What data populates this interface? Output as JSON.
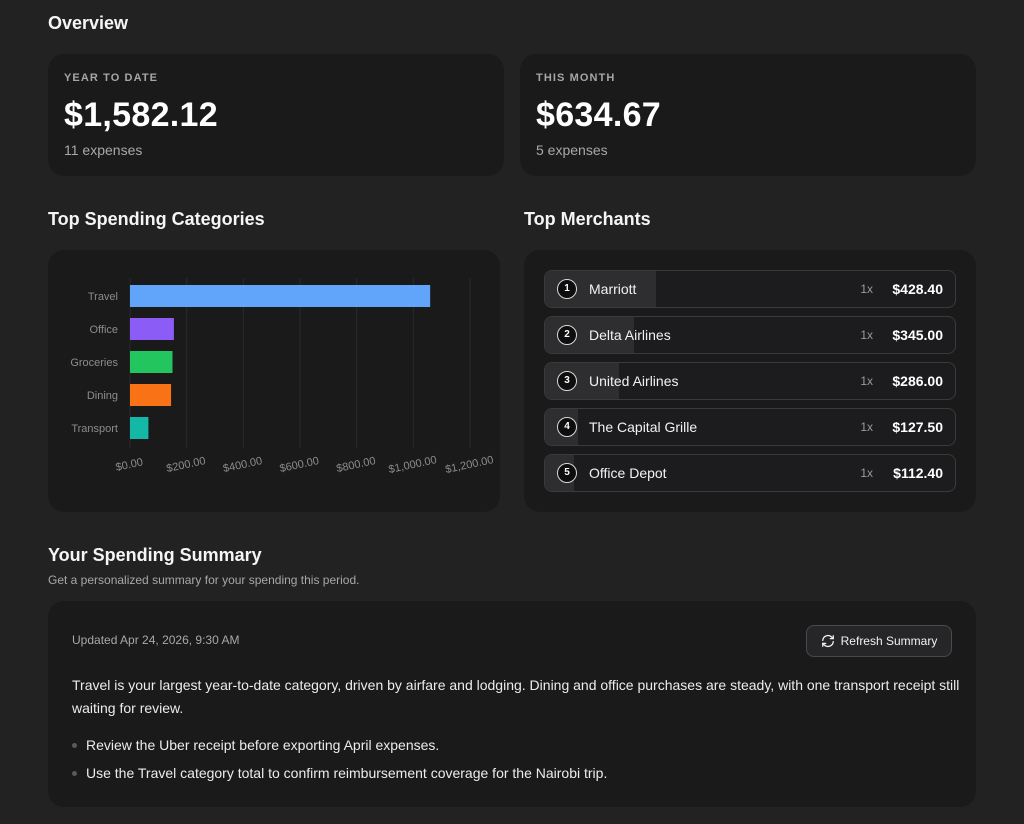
{
  "overview": {
    "title": "Overview",
    "year_to_date": {
      "label": "YEAR TO DATE",
      "amount": "$1,582.12",
      "count": "11 expenses"
    },
    "this_month": {
      "label": "THIS MONTH",
      "amount": "$634.67",
      "count": "5 expenses"
    }
  },
  "categories": {
    "title": "Top Spending Categories"
  },
  "chart_data": {
    "type": "bar",
    "orientation": "horizontal",
    "title": "",
    "xlabel": "",
    "ylabel": "",
    "categories": [
      "Travel",
      "Office",
      "Groceries",
      "Dining",
      "Transport"
    ],
    "values": [
      1059.4,
      155,
      150,
      145,
      65
    ],
    "colors": [
      "#60a5fa",
      "#8b5cf6",
      "#22c55e",
      "#f97316",
      "#14b8a6"
    ],
    "xlim": [
      0,
      1200
    ],
    "xticks": [
      0,
      200,
      400,
      600,
      800,
      1000,
      1200
    ],
    "xtick_labels": [
      "$0.00",
      "$200.00",
      "$400.00",
      "$600.00",
      "$800.00",
      "$1,000.00",
      "$1,200.00"
    ],
    "grid": "vertical"
  },
  "merchants": {
    "title": "Top Merchants",
    "items": [
      {
        "rank": "1",
        "name": "Marriott",
        "count": "1x",
        "amount": "$428.40",
        "share": 1.0
      },
      {
        "rank": "2",
        "name": "Delta Airlines",
        "count": "1x",
        "amount": "$345.00",
        "share": 0.805
      },
      {
        "rank": "3",
        "name": "United Airlines",
        "count": "1x",
        "amount": "$286.00",
        "share": 0.668
      },
      {
        "rank": "4",
        "name": "The Capital Grille",
        "count": "1x",
        "amount": "$127.50",
        "share": 0.298
      },
      {
        "rank": "5",
        "name": "Office Depot",
        "count": "1x",
        "amount": "$112.40",
        "share": 0.262
      }
    ]
  },
  "summary": {
    "title": "Your Spending Summary",
    "subtitle": "Get a personalized summary for your spending this period.",
    "updated": "Updated Apr 24, 2026, 9:30 AM",
    "refresh_label": "Refresh Summary",
    "refresh_icon": "refresh-icon",
    "body": "Travel is your largest year-to-date category, driven by airfare and lodging. Dining and office purchases are steady, with one transport receipt still waiting for review.",
    "bullets": [
      "Review the Uber receipt before exporting April expenses.",
      "Use the Travel category total to confirm reimbursement coverage for the Nairobi trip."
    ]
  }
}
